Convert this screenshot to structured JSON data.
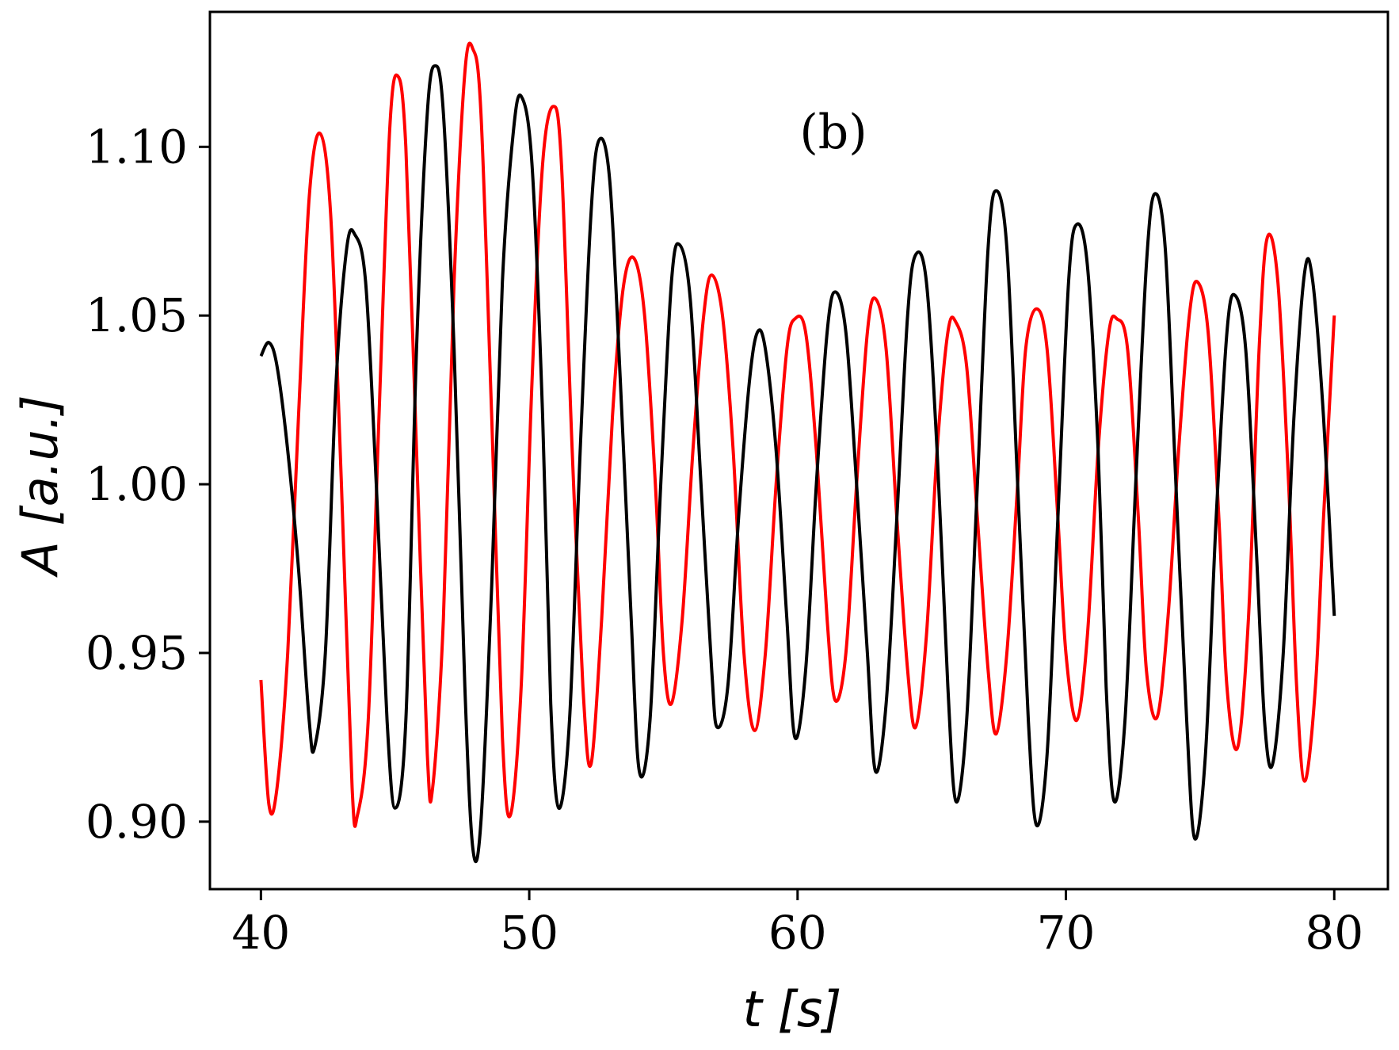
{
  "chart_data": {
    "type": "line",
    "annotation": "(b)",
    "xlabel": "t [s]",
    "ylabel": "A [a.u.]",
    "xlim": [
      38.1,
      82.0
    ],
    "ylim": [
      0.88,
      1.14
    ],
    "x_ticks": [
      40,
      50,
      60,
      70,
      80
    ],
    "x_tick_labels": [
      "40",
      "50",
      "60",
      "70",
      "80"
    ],
    "y_ticks": [
      0.9,
      0.95,
      1.0,
      1.05,
      1.1
    ],
    "y_tick_labels": [
      "0.90",
      "0.95",
      "1.00",
      "1.05",
      "1.10"
    ],
    "grid": false,
    "series": [
      {
        "color": "#ff0000",
        "points": [
          [
            40.0,
            0.942
          ],
          [
            40.3,
            0.905
          ],
          [
            40.6,
            0.91
          ],
          [
            41.0,
            0.95
          ],
          [
            41.4,
            1.02
          ],
          [
            41.8,
            1.085
          ],
          [
            42.2,
            1.104
          ],
          [
            42.6,
            1.08
          ],
          [
            43.0,
            1.0
          ],
          [
            43.4,
            0.91
          ],
          [
            43.6,
            0.902
          ],
          [
            44.0,
            0.93
          ],
          [
            44.4,
            1.02
          ],
          [
            44.8,
            1.105
          ],
          [
            45.1,
            1.121
          ],
          [
            45.4,
            1.1
          ],
          [
            45.8,
            1.01
          ],
          [
            46.2,
            0.92
          ],
          [
            46.4,
            0.91
          ],
          [
            46.8,
            0.96
          ],
          [
            47.2,
            1.06
          ],
          [
            47.6,
            1.122
          ],
          [
            47.9,
            1.129
          ],
          [
            48.2,
            1.11
          ],
          [
            48.6,
            1.02
          ],
          [
            49.0,
            0.925
          ],
          [
            49.3,
            0.902
          ],
          [
            49.7,
            0.94
          ],
          [
            50.1,
            1.03
          ],
          [
            50.5,
            1.095
          ],
          [
            50.9,
            1.112
          ],
          [
            51.2,
            1.095
          ],
          [
            51.6,
            1.01
          ],
          [
            52.0,
            0.94
          ],
          [
            52.3,
            0.917
          ],
          [
            52.7,
            0.96
          ],
          [
            53.1,
            1.02
          ],
          [
            53.5,
            1.058
          ],
          [
            53.9,
            1.067
          ],
          [
            54.3,
            1.05
          ],
          [
            54.7,
            1.0
          ],
          [
            55.0,
            0.95
          ],
          [
            55.3,
            0.935
          ],
          [
            55.7,
            0.96
          ],
          [
            56.1,
            1.01
          ],
          [
            56.5,
            1.05
          ],
          [
            56.8,
            1.062
          ],
          [
            57.2,
            1.05
          ],
          [
            57.6,
            1.01
          ],
          [
            58.0,
            0.95
          ],
          [
            58.4,
            0.927
          ],
          [
            58.8,
            0.95
          ],
          [
            59.2,
            1.0
          ],
          [
            59.6,
            1.04
          ],
          [
            59.9,
            1.049
          ],
          [
            60.3,
            1.045
          ],
          [
            60.7,
            1.01
          ],
          [
            61.1,
            0.96
          ],
          [
            61.4,
            0.936
          ],
          [
            61.8,
            0.95
          ],
          [
            62.2,
            1.0
          ],
          [
            62.6,
            1.045
          ],
          [
            62.9,
            1.055
          ],
          [
            63.3,
            1.04
          ],
          [
            63.7,
            0.99
          ],
          [
            64.1,
            0.945
          ],
          [
            64.4,
            0.928
          ],
          [
            64.8,
            0.955
          ],
          [
            65.2,
            1.01
          ],
          [
            65.6,
            1.045
          ],
          [
            65.9,
            1.048
          ],
          [
            66.3,
            1.035
          ],
          [
            66.7,
            0.99
          ],
          [
            67.1,
            0.945
          ],
          [
            67.4,
            0.926
          ],
          [
            67.8,
            0.95
          ],
          [
            68.2,
            1.0
          ],
          [
            68.5,
            1.04
          ],
          [
            68.9,
            1.052
          ],
          [
            69.3,
            1.04
          ],
          [
            69.7,
            0.99
          ],
          [
            70.0,
            0.95
          ],
          [
            70.4,
            0.93
          ],
          [
            70.8,
            0.955
          ],
          [
            71.2,
            1.01
          ],
          [
            71.6,
            1.045
          ],
          [
            71.9,
            1.049
          ],
          [
            72.3,
            1.04
          ],
          [
            72.7,
            0.99
          ],
          [
            73.0,
            0.945
          ],
          [
            73.4,
            0.931
          ],
          [
            73.8,
            0.96
          ],
          [
            74.2,
            1.01
          ],
          [
            74.6,
            1.05
          ],
          [
            74.9,
            1.06
          ],
          [
            75.3,
            1.045
          ],
          [
            75.7,
            0.99
          ],
          [
            76.0,
            0.94
          ],
          [
            76.4,
            0.922
          ],
          [
            76.8,
            0.96
          ],
          [
            77.2,
            1.04
          ],
          [
            77.5,
            1.073
          ],
          [
            77.9,
            1.06
          ],
          [
            78.3,
            1.0
          ],
          [
            78.6,
            0.94
          ],
          [
            78.9,
            0.912
          ],
          [
            79.3,
            0.94
          ],
          [
            79.6,
            0.99
          ],
          [
            80.0,
            1.05
          ]
        ]
      },
      {
        "color": "#000000",
        "points": [
          [
            40.0,
            1.038
          ],
          [
            40.3,
            1.042
          ],
          [
            40.6,
            1.035
          ],
          [
            41.0,
            1.01
          ],
          [
            41.4,
            0.975
          ],
          [
            41.8,
            0.93
          ],
          [
            42.0,
            0.922
          ],
          [
            42.4,
            0.95
          ],
          [
            42.8,
            1.03
          ],
          [
            43.2,
            1.07
          ],
          [
            43.5,
            1.074
          ],
          [
            43.9,
            1.06
          ],
          [
            44.3,
            1.0
          ],
          [
            44.7,
            0.93
          ],
          [
            45.0,
            0.904
          ],
          [
            45.4,
            0.93
          ],
          [
            45.8,
            1.04
          ],
          [
            46.2,
            1.11
          ],
          [
            46.5,
            1.124
          ],
          [
            46.8,
            1.11
          ],
          [
            47.2,
            1.04
          ],
          [
            47.6,
            0.94
          ],
          [
            47.9,
            0.892
          ],
          [
            48.2,
            0.9
          ],
          [
            48.6,
            0.97
          ],
          [
            49.0,
            1.06
          ],
          [
            49.4,
            1.104
          ],
          [
            49.7,
            1.115
          ],
          [
            50.1,
            1.095
          ],
          [
            50.5,
            1.02
          ],
          [
            50.8,
            0.935
          ],
          [
            51.1,
            0.904
          ],
          [
            51.5,
            0.93
          ],
          [
            51.9,
            1.01
          ],
          [
            52.3,
            1.08
          ],
          [
            52.6,
            1.102
          ],
          [
            53.0,
            1.09
          ],
          [
            53.4,
            1.03
          ],
          [
            53.8,
            0.96
          ],
          [
            54.1,
            0.915
          ],
          [
            54.5,
            0.93
          ],
          [
            54.9,
            1.0
          ],
          [
            55.3,
            1.06
          ],
          [
            55.6,
            1.071
          ],
          [
            56.0,
            1.055
          ],
          [
            56.4,
            1.0
          ],
          [
            56.8,
            0.945
          ],
          [
            57.0,
            0.928
          ],
          [
            57.4,
            0.94
          ],
          [
            57.8,
            0.99
          ],
          [
            58.2,
            1.03
          ],
          [
            58.5,
            1.045
          ],
          [
            58.8,
            1.04
          ],
          [
            59.2,
            1.01
          ],
          [
            59.6,
            0.96
          ],
          [
            59.9,
            0.925
          ],
          [
            60.3,
            0.945
          ],
          [
            60.7,
            1.0
          ],
          [
            61.1,
            1.045
          ],
          [
            61.4,
            1.057
          ],
          [
            61.8,
            1.045
          ],
          [
            62.2,
            1.0
          ],
          [
            62.6,
            0.95
          ],
          [
            62.9,
            0.915
          ],
          [
            63.3,
            0.935
          ],
          [
            63.7,
            0.99
          ],
          [
            64.1,
            1.05
          ],
          [
            64.4,
            1.068
          ],
          [
            64.8,
            1.06
          ],
          [
            65.2,
            1.01
          ],
          [
            65.6,
            0.94
          ],
          [
            65.9,
            0.906
          ],
          [
            66.3,
            0.93
          ],
          [
            66.7,
            1.0
          ],
          [
            67.1,
            1.07
          ],
          [
            67.4,
            1.087
          ],
          [
            67.8,
            1.07
          ],
          [
            68.2,
            1.0
          ],
          [
            68.6,
            0.93
          ],
          [
            68.9,
            0.899
          ],
          [
            69.3,
            0.92
          ],
          [
            69.7,
            0.99
          ],
          [
            70.1,
            1.06
          ],
          [
            70.4,
            1.077
          ],
          [
            70.8,
            1.065
          ],
          [
            71.2,
            1.01
          ],
          [
            71.5,
            0.94
          ],
          [
            71.8,
            0.906
          ],
          [
            72.2,
            0.93
          ],
          [
            72.6,
            1.0
          ],
          [
            73.0,
            1.065
          ],
          [
            73.3,
            1.086
          ],
          [
            73.7,
            1.07
          ],
          [
            74.1,
            1.0
          ],
          [
            74.5,
            0.93
          ],
          [
            74.8,
            0.895
          ],
          [
            75.2,
            0.92
          ],
          [
            75.6,
            0.99
          ],
          [
            76.0,
            1.045
          ],
          [
            76.3,
            1.056
          ],
          [
            76.7,
            1.04
          ],
          [
            77.1,
            0.98
          ],
          [
            77.4,
            0.93
          ],
          [
            77.7,
            0.917
          ],
          [
            78.1,
            0.95
          ],
          [
            78.5,
            1.02
          ],
          [
            78.9,
            1.063
          ],
          [
            79.2,
            1.06
          ],
          [
            79.6,
            1.02
          ],
          [
            80.0,
            0.961
          ]
        ]
      }
    ]
  }
}
